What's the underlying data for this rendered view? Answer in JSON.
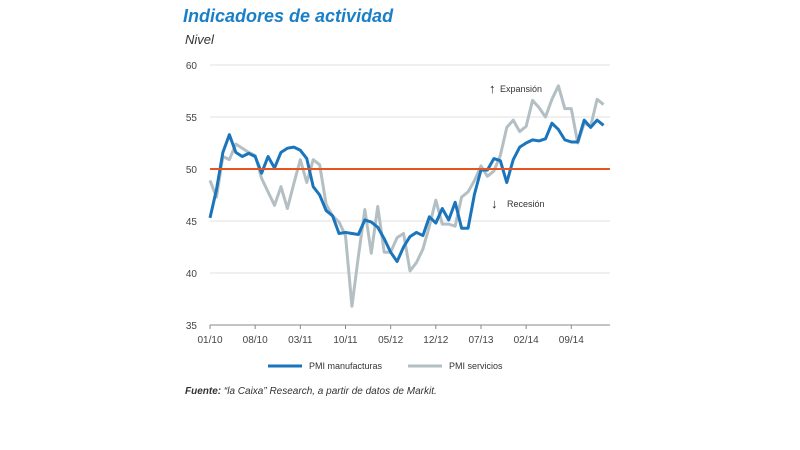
{
  "chart_data": {
    "type": "line",
    "title": "Indicadores de actividad",
    "subtitle": "Nivel",
    "ylim": [
      35,
      60
    ],
    "yticks": [
      "35",
      "40",
      "45",
      "50",
      "55",
      "60"
    ],
    "xticks": [
      "01/10",
      "08/10",
      "03/11",
      "10/11",
      "05/12",
      "12/12",
      "07/13",
      "02/14",
      "09/14"
    ],
    "start_month": "01/10",
    "reference_line": 50,
    "annotations": {
      "up": "Expansión",
      "down": "Recesión"
    },
    "series": [
      {
        "name": "PMI manufacturas",
        "color": "#1a75bc",
        "values": [
          45.3,
          48,
          51.6,
          53.3,
          51.6,
          51.2,
          51.5,
          51.2,
          49.6,
          51.2,
          50.1,
          51.6,
          52.0,
          52.1,
          51.8,
          51.0,
          48.3,
          47.5,
          46.0,
          45.5,
          43.8,
          43.9,
          43.8,
          43.7,
          45.1,
          44.9,
          44.4,
          43.3,
          42.0,
          41.1,
          42.5,
          43.5,
          43.9,
          43.6,
          45.4,
          44.8,
          46.2,
          45.1,
          46.8,
          44.3,
          44.3,
          47.6,
          49.9,
          49.9,
          51.0,
          50.8,
          48.7,
          50.9,
          52.1,
          52.5,
          52.8,
          52.7,
          52.9,
          54.4,
          53.8,
          52.8,
          52.6,
          52.6,
          54.7,
          54.0,
          54.7,
          54.2
        ]
      },
      {
        "name": "PMI servicios",
        "color": "#b4bfc4",
        "values": [
          48.9,
          47.3,
          51.2,
          50.9,
          52.4,
          52.0,
          51.6,
          51.3,
          49.1,
          47.8,
          46.5,
          48.3,
          46.2,
          48.6,
          50.9,
          48.7,
          50.9,
          50.4,
          46.6,
          45.5,
          44.9,
          43.6,
          36.8,
          41.6,
          46.1,
          41.9,
          46.4,
          42.0,
          42.0,
          43.4,
          43.8,
          40.2,
          41.0,
          42.3,
          44.5,
          47.0,
          44.7,
          44.7,
          44.5,
          47.3,
          47.8,
          48.9,
          50.3,
          49.3,
          49.8,
          51.3,
          54.0,
          54.7,
          53.6,
          54.1,
          56.6,
          55.9,
          55.0,
          56.7,
          58.0,
          55.8,
          55.8,
          52.5,
          54.4,
          54.1,
          56.7,
          56.2
        ]
      }
    ]
  },
  "source": {
    "label": "Fuente:",
    "text": " “la Caixa” Research, a partir de datos de Markit."
  }
}
